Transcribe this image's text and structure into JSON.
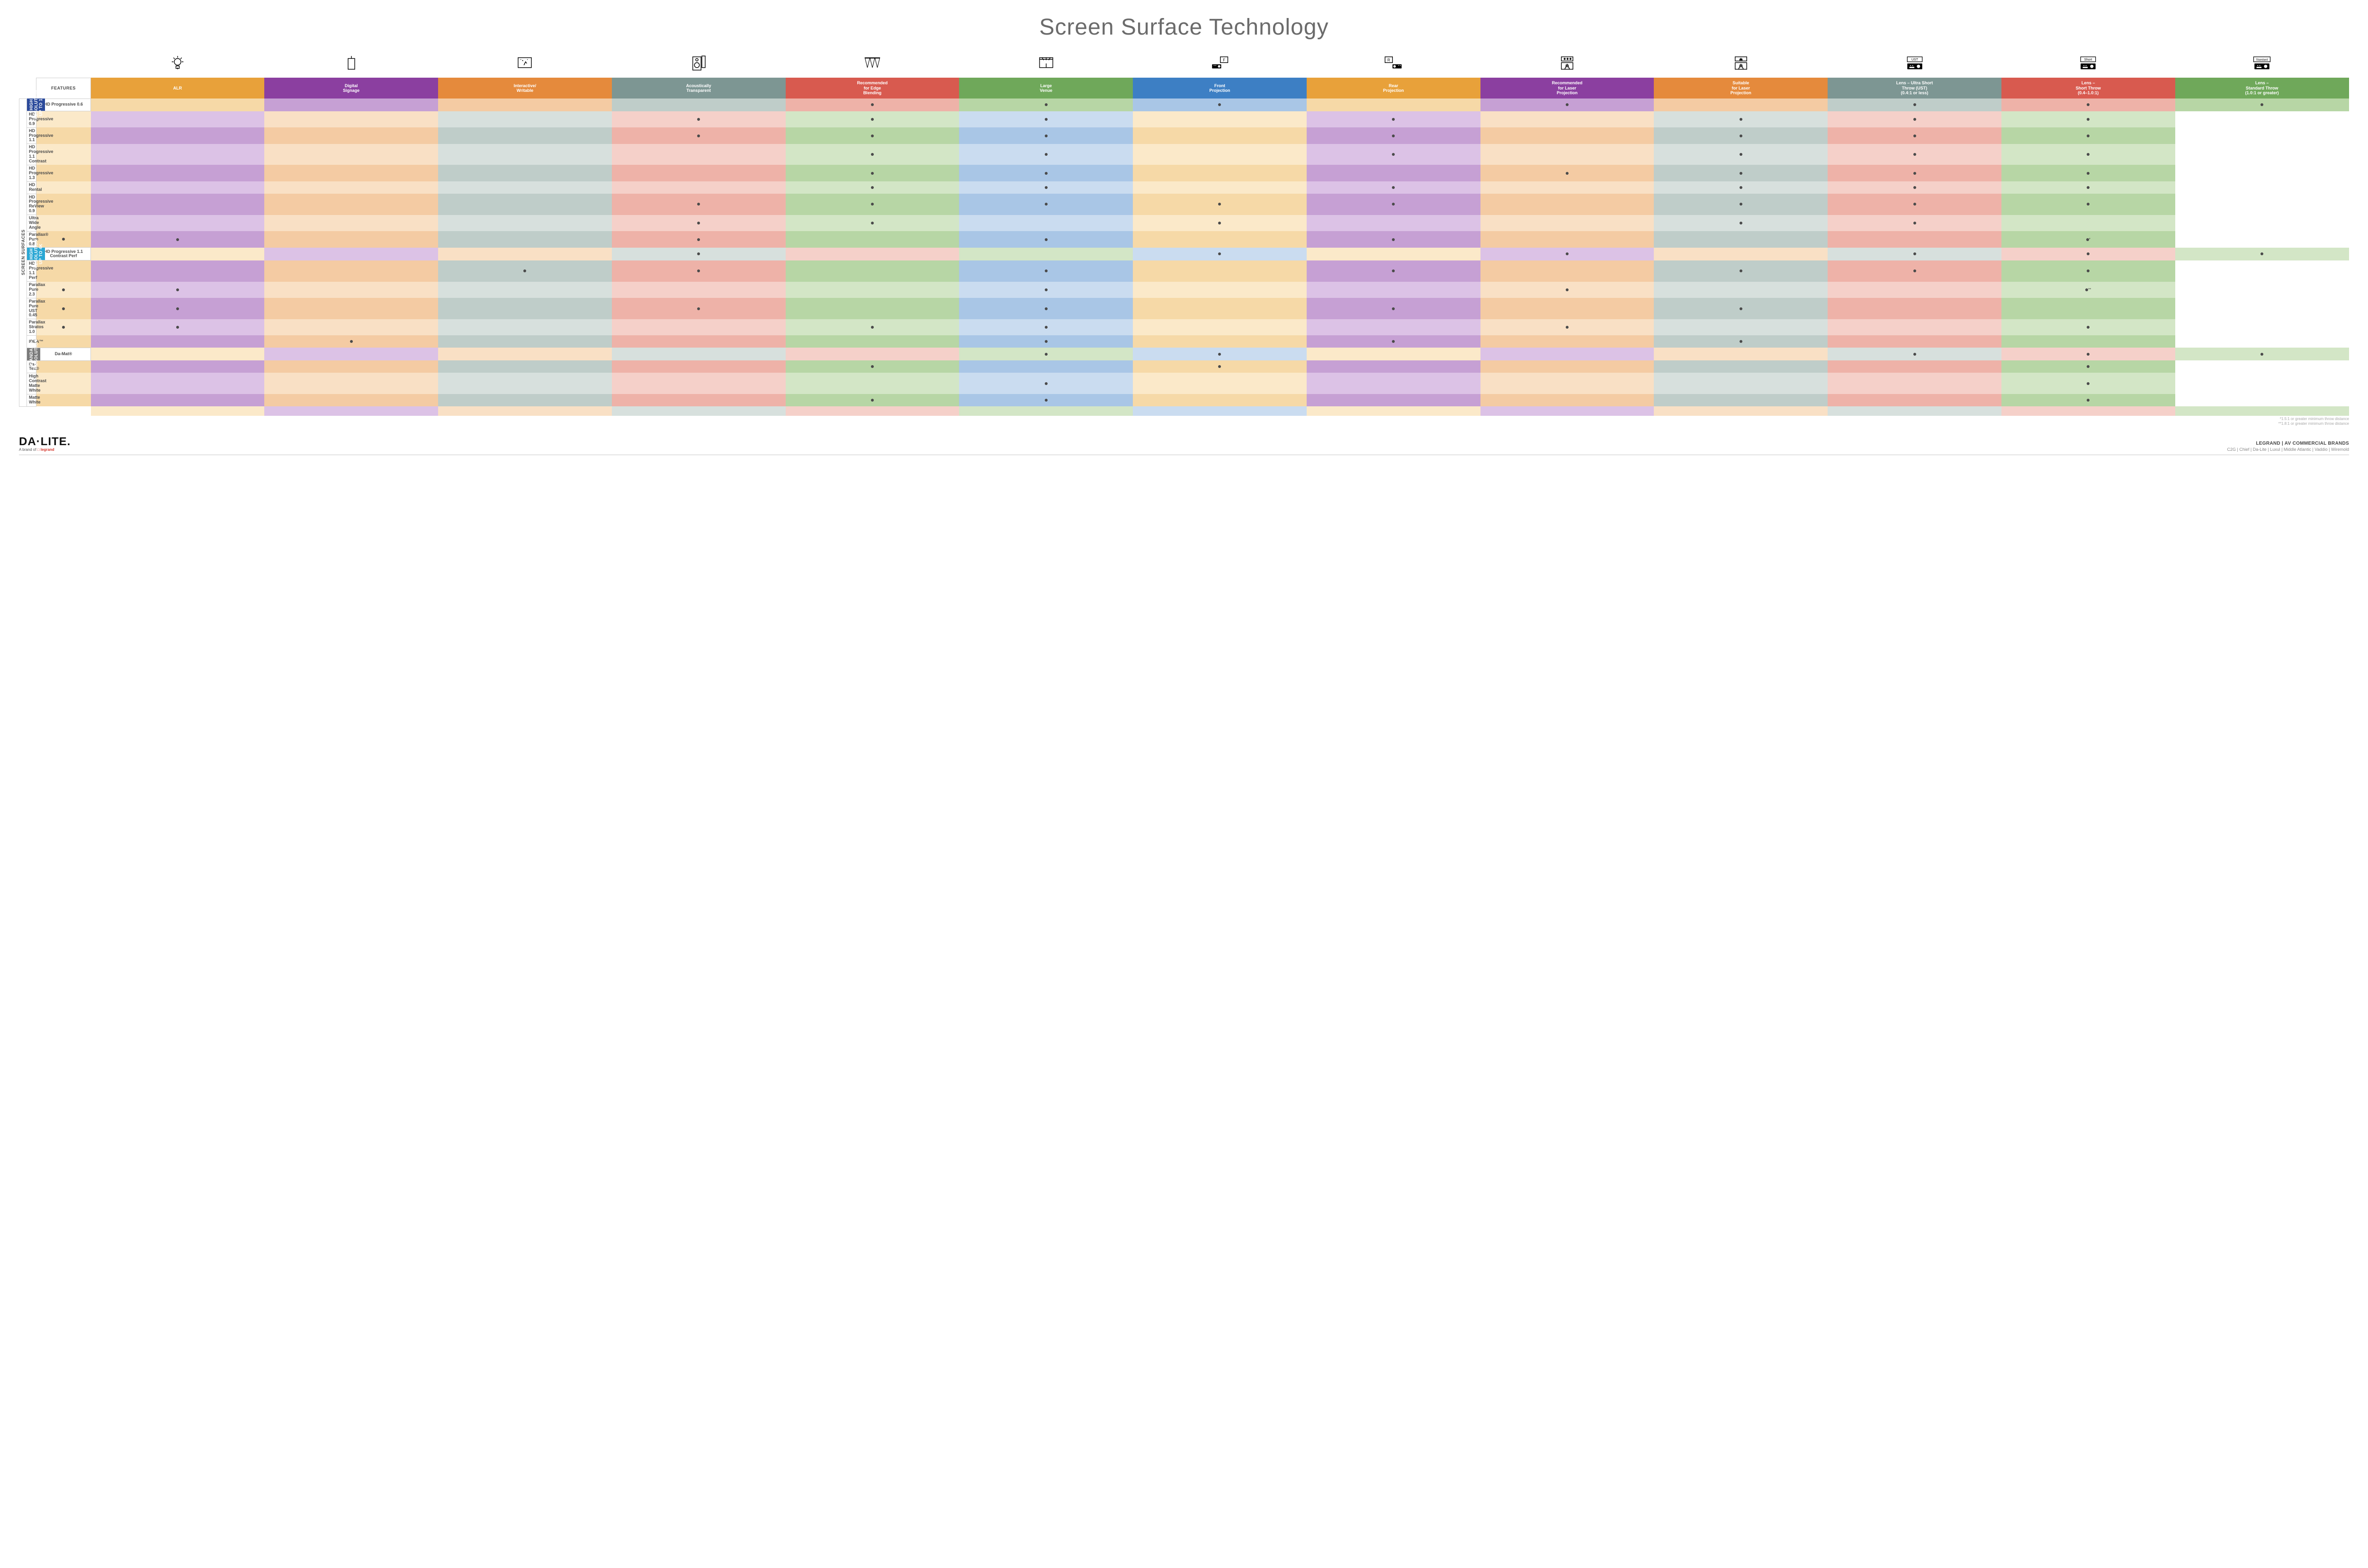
{
  "title": "Screen Surface Technology",
  "columns": [
    {
      "key": "alr",
      "label": "ALR",
      "color": "#e8a13a",
      "tintA": "#f6d9a7",
      "tintB": "#fbe9c9"
    },
    {
      "key": "signage",
      "label": "Digital\nSignage",
      "color": "#8b3fa0",
      "tintA": "#c6a0d4",
      "tintB": "#dcc2e6"
    },
    {
      "key": "write",
      "label": "Interactive/\nWritable",
      "color": "#e58a3c",
      "tintA": "#f4cba3",
      "tintB": "#f9e0c5"
    },
    {
      "key": "acoustic",
      "label": "Acoustically\nTransparent",
      "color": "#7d9693",
      "tintA": "#bfcdc9",
      "tintB": "#d7e0dd"
    },
    {
      "key": "edge",
      "label": "Recommended\nfor Edge\nBlending",
      "color": "#d85a4f",
      "tintA": "#eeb2a8",
      "tintB": "#f5d0c9"
    },
    {
      "key": "venue",
      "label": "Large\nVenue",
      "color": "#6fa85a",
      "tintA": "#b7d6a5",
      "tintB": "#d3e6c6"
    },
    {
      "key": "front",
      "label": "Front\nProjection",
      "color": "#3d7fc4",
      "tintA": "#a9c6e6",
      "tintB": "#cadcf0"
    },
    {
      "key": "rear",
      "label": "Rear\nProjection",
      "color": "#e8a13a",
      "tintA": "#f6d9a7",
      "tintB": "#fbe9c9"
    },
    {
      "key": "reclaser",
      "label": "Recommended\nfor Laser\nProjection",
      "color": "#8b3fa0",
      "tintA": "#c6a0d4",
      "tintB": "#dcc2e6"
    },
    {
      "key": "suitlaser",
      "label": "Suitable\nfor Laser\nProjection",
      "color": "#e58a3c",
      "tintA": "#f4cba3",
      "tintB": "#f9e0c5"
    },
    {
      "key": "ust",
      "label": "Lens – Ultra Short\nThrow (UST)\n(0.4:1 or less)",
      "color": "#7d9693",
      "tintA": "#bfcdc9",
      "tintB": "#d7e0dd"
    },
    {
      "key": "short",
      "label": "Lens –\nShort Throw\n(0.4–1.0:1)",
      "color": "#d85a4f",
      "tintA": "#eeb2a8",
      "tintB": "#f5d0c9"
    },
    {
      "key": "std",
      "label": "Lens –\nStandard Throw\n(1.0:1 or greater)",
      "color": "#6fa85a",
      "tintA": "#b7d6a5",
      "tintB": "#d3e6c6"
    }
  ],
  "sideOuter": "SCREEN SURFACES",
  "groups": [
    {
      "label": "HIGH RESOLUTION UP TO 16K",
      "color": "#2b4a9b",
      "rows": 9
    },
    {
      "label": "HIGH RESOLUTION UP TO 4K",
      "color": "#2aa7d4",
      "rows": 6
    },
    {
      "label": "STANDARD\nRESOLUTION",
      "color": "#7a7a7a",
      "rows": 4
    }
  ],
  "rows": [
    {
      "label": "HD Progressive 0.6",
      "dots": [
        "",
        "",
        "",
        "",
        "•",
        "•",
        "•",
        "",
        "•",
        "",
        "•",
        "•",
        "•"
      ]
    },
    {
      "label": "HD Progressive 0.9",
      "dots": [
        "",
        "",
        "",
        "",
        "•",
        "•",
        "•",
        "",
        "•",
        "",
        "•",
        "•",
        "•"
      ]
    },
    {
      "label": "HD Progressive 1.1",
      "dots": [
        "",
        "",
        "",
        "",
        "•",
        "•",
        "•",
        "",
        "•",
        "",
        "•",
        "•",
        "•"
      ]
    },
    {
      "label": "HD Progressive\n1.1 Contrast",
      "dots": [
        "",
        "",
        "",
        "",
        "",
        "•",
        "•",
        "",
        "•",
        "",
        "•",
        "•",
        "•"
      ]
    },
    {
      "label": "HD Progressive 1.3",
      "dots": [
        "",
        "",
        "",
        "",
        "",
        "•",
        "•",
        "",
        "",
        "•",
        "•",
        "•",
        "•"
      ]
    },
    {
      "label": "HD Rental",
      "dots": [
        "",
        "",
        "",
        "",
        "",
        "•",
        "•",
        "",
        "•",
        "",
        "•",
        "•",
        "•"
      ]
    },
    {
      "label": "HD Progressive ReView 0.9",
      "dots": [
        "",
        "",
        "",
        "",
        "•",
        "•",
        "•",
        "•",
        "•",
        "",
        "•",
        "•",
        "•"
      ]
    },
    {
      "label": "Ultra Wide Angle",
      "dots": [
        "",
        "",
        "",
        "",
        "•",
        "•",
        "",
        "•",
        "",
        "",
        "•",
        "•",
        ""
      ]
    },
    {
      "label": "Parallax® Pure 0.8",
      "dots": [
        "•",
        "•",
        "",
        "",
        "•",
        "",
        "•",
        "",
        "•",
        "",
        "",
        "",
        "•*"
      ]
    },
    {
      "label": "HD Progressive 1.1\nContrast Perf",
      "dots": [
        "",
        "",
        "",
        "•",
        "",
        "",
        "•",
        "",
        "•",
        "",
        "•",
        "•",
        "•"
      ]
    },
    {
      "label": "HD Progressive 1.1 Perf",
      "dots": [
        "",
        "",
        "",
        "•",
        "•",
        "",
        "•",
        "",
        "•",
        "",
        "•",
        "•",
        "•"
      ]
    },
    {
      "label": "Parallax Pure 2.3",
      "dots": [
        "•",
        "•",
        "",
        "",
        "",
        "",
        "•",
        "",
        "",
        "•",
        "",
        "",
        "•**"
      ]
    },
    {
      "label": "Parallax Pure UST 0.45",
      "dots": [
        "•",
        "•",
        "",
        "",
        "•",
        "",
        "•",
        "",
        "•",
        "",
        "•",
        "",
        ""
      ]
    },
    {
      "label": "Parallax Stratos 1.0",
      "dots": [
        "•",
        "•",
        "",
        "",
        "",
        "•",
        "•",
        "",
        "",
        "•",
        "",
        "",
        "•"
      ]
    },
    {
      "label": "IDEA™",
      "dots": [
        "",
        "",
        "•",
        "",
        "",
        "",
        "•",
        "",
        "•",
        "",
        "•",
        "",
        ""
      ]
    },
    {
      "label": "Da-Mat®",
      "dots": [
        "",
        "",
        "",
        "",
        "",
        "•",
        "•",
        "",
        "",
        "",
        "•",
        "•",
        "•"
      ]
    },
    {
      "label": "Da-Tex®",
      "dots": [
        "",
        "",
        "",
        "",
        "",
        "•",
        "",
        "•",
        "",
        "",
        "",
        "",
        "•"
      ]
    },
    {
      "label": "High Contrast\nMatte White",
      "dots": [
        "",
        "",
        "",
        "",
        "",
        "",
        "•",
        "",
        "",
        "",
        "",
        "",
        "•"
      ]
    },
    {
      "label": "Matte White",
      "dots": [
        "",
        "",
        "",
        "",
        "",
        "•",
        "•",
        "",
        "",
        "",
        "",
        "",
        "•"
      ]
    }
  ],
  "footnotes": [
    "*1.5:1 or greater minimum throw distance",
    "**1.8:1 or greater minimum throw distance"
  ],
  "footer": {
    "brand": "DA·LITE.",
    "brandSub": "A brand of",
    "brandSubLogo": "legrand",
    "rightTop": "LEGRAND | AV COMMERCIAL BRANDS",
    "rightBot": "C2G  |  Chief  |  Da-Lite  |  Luxul  |  Middle Atlantic  |  Vaddio  |  Wiremold"
  },
  "icons": {
    "proj_labels": {
      "ust": "UST",
      "short": "Short",
      "std": "Standard"
    }
  }
}
